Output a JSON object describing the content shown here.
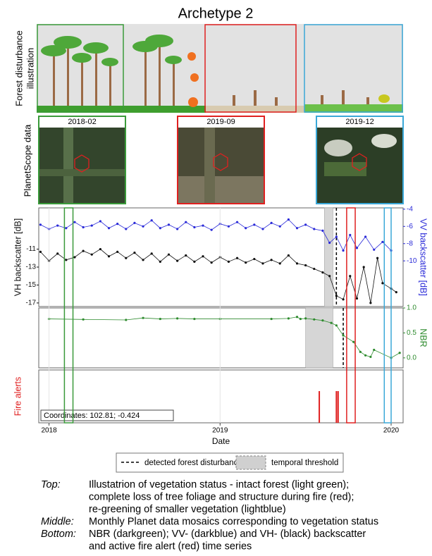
{
  "title": "Archetype 2",
  "illustration_label": [
    "Forest disturbance",
    "illustration"
  ],
  "imagery_label": "PlanetScope data",
  "image_dates": [
    {
      "date": "2018-02",
      "color": "#3a9a3a"
    },
    {
      "date": "2019-09",
      "color": "#e02020"
    },
    {
      "date": "2019-12",
      "color": "#3aa8d8"
    }
  ],
  "image_windows": [
    {
      "color": "#3a9a3a",
      "x": [
        2018.09,
        2018.14
      ]
    },
    {
      "color": "#e02020",
      "x": [
        2019.74,
        2019.79
      ]
    },
    {
      "color": "#3aa8d8",
      "x": [
        2019.96,
        2020.0
      ]
    }
  ],
  "chart_data": [
    {
      "type": "line",
      "ylabel": "VH backscatter [dB]",
      "y2label": "VV backscatter [dB]",
      "xlim": [
        2017.94,
        2020.07
      ],
      "ylim": [
        -17.4,
        -6.4
      ],
      "yticks": [
        -11,
        -13,
        -15,
        -17
      ],
      "y2lim": [
        -15.3,
        -3.85
      ],
      "y2ticks": [
        -4,
        -6,
        -8,
        -10
      ],
      "threshold": [
        2019.61,
        2019.66
      ],
      "disturbance": 2019.68,
      "series": [
        {
          "color": "#2a2ad8",
          "axis": "y2",
          "x": [
            2017.95,
            2018.0,
            2018.05,
            2018.1,
            2018.15,
            2018.2,
            2018.25,
            2018.3,
            2018.35,
            2018.4,
            2018.45,
            2018.5,
            2018.55,
            2018.6,
            2018.65,
            2018.7,
            2018.75,
            2018.8,
            2018.85,
            2018.9,
            2018.95,
            2019.0,
            2019.05,
            2019.1,
            2019.15,
            2019.2,
            2019.25,
            2019.3,
            2019.35,
            2019.4,
            2019.45,
            2019.5,
            2019.55,
            2019.6,
            2019.64,
            2019.68,
            2019.72,
            2019.76,
            2019.8,
            2019.85,
            2019.9,
            2019.95,
            2020.0
          ],
          "values": [
            -5.8,
            -6.3,
            -5.9,
            -6.2,
            -5.5,
            -6.1,
            -5.9,
            -5.4,
            -6.2,
            -5.7,
            -6.3,
            -5.6,
            -6.0,
            -5.3,
            -6.2,
            -5.8,
            -6.3,
            -5.5,
            -6.1,
            -5.9,
            -6.4,
            -5.7,
            -6.0,
            -5.5,
            -6.2,
            -5.8,
            -6.3,
            -5.6,
            -6.0,
            -5.2,
            -6.2,
            -5.8,
            -6.3,
            -6.5,
            -7.9,
            -7.2,
            -8.8,
            -7.0,
            -8.5,
            -7.2,
            -8.7,
            -7.8,
            -8.8
          ]
        },
        {
          "color": "#111111",
          "axis": "y",
          "x": [
            2017.95,
            2018.0,
            2018.05,
            2018.1,
            2018.15,
            2018.2,
            2018.25,
            2018.3,
            2018.35,
            2018.4,
            2018.45,
            2018.5,
            2018.55,
            2018.6,
            2018.65,
            2018.7,
            2018.75,
            2018.8,
            2018.85,
            2018.9,
            2018.95,
            2019.0,
            2019.05,
            2019.1,
            2019.15,
            2019.2,
            2019.25,
            2019.3,
            2019.35,
            2019.4,
            2019.45,
            2019.5,
            2019.55,
            2019.6,
            2019.64,
            2019.68,
            2019.72,
            2019.76,
            2019.8,
            2019.84,
            2019.88,
            2019.92,
            2019.95,
            2020.0,
            2020.03
          ],
          "values": [
            -11.3,
            -12.3,
            -11.5,
            -12.2,
            -11.9,
            -11.2,
            -11.6,
            -11.0,
            -11.8,
            -11.3,
            -12.0,
            -11.4,
            -12.2,
            -11.5,
            -12.4,
            -11.6,
            -12.3,
            -11.7,
            -12.4,
            -11.8,
            -12.5,
            -11.9,
            -12.4,
            -12.0,
            -12.5,
            -12.1,
            -12.6,
            -12.2,
            -12.6,
            -11.7,
            -12.6,
            -12.8,
            -13.2,
            -13.6,
            -14.0,
            -16.2,
            -16.6,
            -14.0,
            -16.5,
            -13.0,
            -17.0,
            -12.0,
            -14.8,
            -15.4,
            -15.8
          ]
        }
      ]
    },
    {
      "type": "line",
      "y2label": "NBR",
      "xlim": [
        2017.94,
        2020.07
      ],
      "y2lim": [
        -0.2,
        1.0
      ],
      "y2ticks": [
        {
          "value": 1.0,
          "label": "1.0"
        },
        0.5,
        {
          "value": 0,
          "label": "0.0"
        }
      ],
      "threshold": [
        2019.5,
        2019.66
      ],
      "disturbance": 2019.72,
      "series": [
        {
          "color": "#2e8b2e",
          "axis": "y2",
          "x": [
            2018.0,
            2018.2,
            2018.45,
            2018.55,
            2018.65,
            2018.75,
            2018.85,
            2019.0,
            2019.3,
            2019.4,
            2019.45,
            2019.47,
            2019.5,
            2019.55,
            2019.6,
            2019.65,
            2019.68,
            2019.72,
            2019.78,
            2019.82,
            2019.85,
            2019.88,
            2019.9,
            2020.0,
            2020.05
          ],
          "values": [
            0.78,
            0.77,
            0.76,
            0.8,
            0.78,
            0.79,
            0.78,
            0.78,
            0.78,
            0.79,
            0.82,
            0.78,
            0.79,
            0.77,
            0.75,
            0.7,
            0.65,
            0.45,
            0.32,
            0.12,
            0.05,
            0.02,
            0.16,
            0.0,
            0.1
          ]
        }
      ]
    },
    {
      "type": "event",
      "ylabel": "Fire alerts",
      "xlabel": "Date",
      "color": "#e02020",
      "annotation": "Coordinates: 102.81; -0.424",
      "xlim": [
        2017.94,
        2020.07
      ],
      "xticks": [
        2018,
        2019,
        2020
      ],
      "grid": true,
      "events": [
        2019.58,
        2019.68,
        2019.69
      ]
    }
  ],
  "legend": [
    "detected forest disturbance",
    "temporal threshold"
  ],
  "caption": [
    {
      "label": "Top:",
      "lines": [
        "Illustatrion of vegetation status - intact forest (light green);",
        "complete loss of tree foliage and structure during fire (red);",
        "re-greening of smaller vegetation (lightblue)"
      ]
    },
    {
      "label": "Middle:",
      "lines": [
        "Monthly Planet data mosaics corresponding to vegetation status"
      ]
    },
    {
      "label": "Bottom:",
      "lines": [
        "NBR (darkgreen); VV- (darkblue) and VH- (black) backscatter",
        "and active fire alert (red) time series"
      ]
    }
  ]
}
